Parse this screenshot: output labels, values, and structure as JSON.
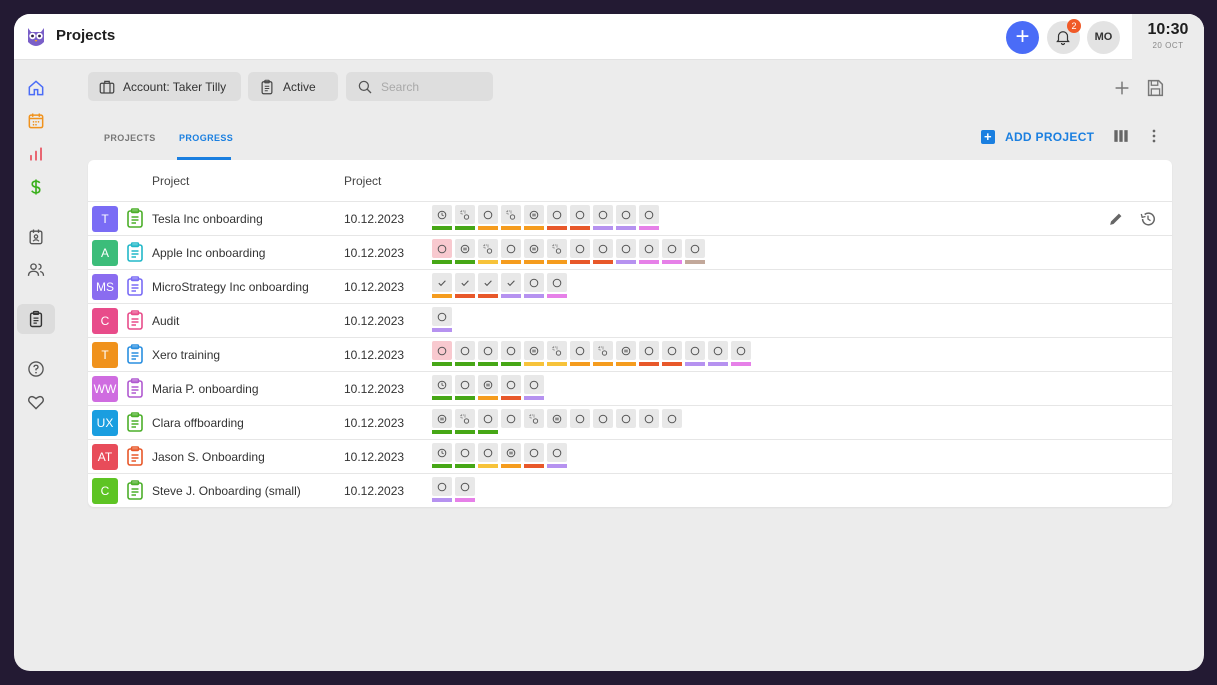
{
  "app": {
    "title": "Projects"
  },
  "header": {
    "notification_count": "2",
    "user_initials": "MO",
    "clock_time": "10:30",
    "clock_date": "20 OCT"
  },
  "filters": {
    "account_label": "Account: Taker Tilly",
    "status_label": "Active",
    "search_placeholder": "Search"
  },
  "tabs": [
    {
      "label": "PROJECTS"
    },
    {
      "label": "PROGRESS"
    }
  ],
  "actions": {
    "add_project_label": "ADD PROJECT"
  },
  "table": {
    "columns": [
      "Project",
      "Project"
    ],
    "rows": [
      {
        "initials": "T",
        "avatar_color": "#7a6cf5",
        "clip_color": "#4caf2a",
        "name": "Tesla Inc onboarding",
        "date": "10.12.2023",
        "steps": [
          [
            "clock",
            "#46a716"
          ],
          [
            "move",
            "#46a716"
          ],
          [
            "circle",
            "#f59c1e"
          ],
          [
            "move",
            "#f59c1e"
          ],
          [
            "target",
            "#f59c1e"
          ],
          [
            "circle",
            "#e8582a"
          ],
          [
            "circle",
            "#e8582a"
          ],
          [
            "circle",
            "#b692f0"
          ],
          [
            "circle",
            "#b692f0"
          ],
          [
            "circle",
            "#e680e8"
          ]
        ]
      },
      {
        "initials": "A",
        "avatar_color": "#3cbd7a",
        "clip_color": "#22b8c8",
        "name": "Apple Inc onboarding",
        "date": "10.12.2023",
        "steps": [
          [
            "circle",
            "#46a716"
          ],
          [
            "target",
            "#46a716"
          ],
          [
            "move",
            "#f7c33a"
          ],
          [
            "circle",
            "#f59c1e"
          ],
          [
            "target",
            "#f59c1e"
          ],
          [
            "move",
            "#f59c1e"
          ],
          [
            "circle",
            "#e8582a"
          ],
          [
            "circle",
            "#e8582a"
          ],
          [
            "circle",
            "#b692f0"
          ],
          [
            "circle",
            "#e680e8"
          ],
          [
            "circle",
            "#e680e8"
          ],
          [
            "circle",
            "#c2a89a"
          ]
        ]
      },
      {
        "initials": "MS",
        "avatar_color": "#8a6cf0",
        "clip_color": "#7a6cf5",
        "name": "MicroStrategy Inc onboarding",
        "date": "10.12.2023",
        "steps": [
          [
            "check",
            "#f59c1e"
          ],
          [
            "check",
            "#e8582a"
          ],
          [
            "check",
            "#e8582a"
          ],
          [
            "check",
            "#b692f0"
          ],
          [
            "circle",
            "#b692f0"
          ],
          [
            "circle",
            "#e680e8"
          ]
        ]
      },
      {
        "initials": "C",
        "avatar_color": "#e84c8a",
        "clip_color": "#e84c8a",
        "name": "Audit",
        "date": "10.12.2023",
        "steps": [
          [
            "circle",
            "#b692f0"
          ]
        ]
      },
      {
        "initials": "T",
        "avatar_color": "#f0921c",
        "clip_color": "#2a8fe0",
        "name": "Xero training",
        "date": "10.12.2023",
        "steps": [
          [
            "circle",
            "#46a716"
          ],
          [
            "circle",
            "#46a716"
          ],
          [
            "circle",
            "#46a716"
          ],
          [
            "circle",
            "#46a716"
          ],
          [
            "target",
            "#f7c33a"
          ],
          [
            "move",
            "#f7c33a"
          ],
          [
            "circle",
            "#f59c1e"
          ],
          [
            "move",
            "#f59c1e"
          ],
          [
            "target",
            "#f59c1e"
          ],
          [
            "circle",
            "#e8582a"
          ],
          [
            "circle",
            "#e8582a"
          ],
          [
            "circle",
            "#b692f0"
          ],
          [
            "circle",
            "#b692f0"
          ],
          [
            "circle",
            "#e680e8"
          ]
        ]
      },
      {
        "initials": "WW",
        "avatar_color": "#cf6ce0",
        "clip_color": "#b05ad0",
        "name": "Maria P. onboarding",
        "date": "10.12.2023",
        "steps": [
          [
            "clock",
            "#46a716"
          ],
          [
            "circle",
            "#46a716"
          ],
          [
            "target",
            "#f59c1e"
          ],
          [
            "circle",
            "#e8582a"
          ],
          [
            "circle",
            "#b692f0"
          ]
        ]
      },
      {
        "initials": "UX",
        "avatar_color": "#1a9ee0",
        "clip_color": "#4caf2a",
        "name": "Clara offboarding",
        "date": "10.12.2023",
        "steps": [
          [
            "target",
            "#46a716"
          ],
          [
            "move",
            "#46a716"
          ],
          [
            "circle",
            "#46a716"
          ],
          [
            "circle",
            ""
          ],
          [
            "move",
            ""
          ],
          [
            "target",
            ""
          ],
          [
            "circle",
            ""
          ],
          [
            "circle",
            ""
          ],
          [
            "circle",
            ""
          ],
          [
            "circle",
            ""
          ],
          [
            "circle",
            ""
          ]
        ]
      },
      {
        "initials": "AT",
        "avatar_color": "#e84c5a",
        "clip_color": "#e8582a",
        "name": "Jason S. Onboarding",
        "date": "10.12.2023",
        "steps": [
          [
            "clock",
            "#46a716"
          ],
          [
            "circle",
            "#46a716"
          ],
          [
            "circle",
            "#f7c33a"
          ],
          [
            "target",
            "#f59c1e"
          ],
          [
            "circle",
            "#e8582a"
          ],
          [
            "circle",
            "#b692f0"
          ]
        ]
      },
      {
        "initials": "C",
        "avatar_color": "#5ec424",
        "clip_color": "#4caf2a",
        "name": "Steve J. Onboarding (small)",
        "date": "10.12.2023",
        "steps": [
          [
            "circle",
            "#b692f0"
          ],
          [
            "circle",
            "#e680e8"
          ]
        ]
      }
    ]
  }
}
